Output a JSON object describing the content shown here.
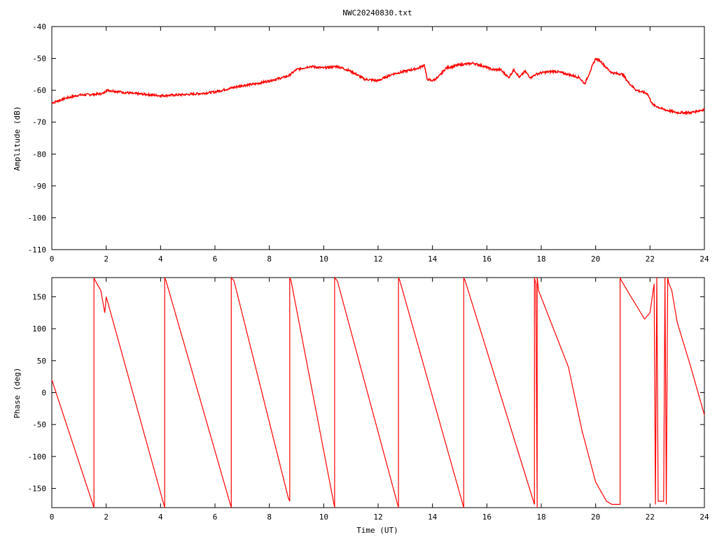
{
  "title": "NWC20240830.txt",
  "colors": {
    "series": "#ff0000",
    "axis": "#000000",
    "background": "#ffffff"
  },
  "chart_data": [
    {
      "type": "line",
      "title": "NWC20240830.txt",
      "xlabel": "",
      "ylabel": "Amplitude (dB)",
      "xlim": [
        0,
        24
      ],
      "ylim": [
        -110,
        -40
      ],
      "xticks": [
        "0",
        "2",
        "4",
        "6",
        "8",
        "10",
        "12",
        "14",
        "16",
        "18",
        "20",
        "22",
        "24"
      ],
      "yticks": [
        "-40",
        "-50",
        "-60",
        "-70",
        "-80",
        "-90",
        "-100",
        "-110"
      ],
      "grid": false,
      "series": [
        {
          "x": [
            0,
            0.5,
            1.0,
            1.5,
            1.9,
            2.0,
            2.1,
            2.5,
            3.0,
            3.5,
            4.0,
            4.5,
            5.0,
            5.5,
            6.0,
            6.5,
            7.0,
            7.5,
            8.0,
            8.5,
            8.7,
            9.0,
            9.5,
            10.0,
            10.5,
            11.0,
            11.5,
            12.0,
            12.5,
            13.0,
            13.5,
            13.7,
            13.8,
            14.0,
            14.2,
            14.5,
            15.0,
            15.5,
            15.9,
            16.2,
            16.5,
            16.8,
            17.0,
            17.2,
            17.4,
            17.6,
            17.8,
            18.0,
            18.5,
            19.0,
            19.4,
            19.6,
            19.8,
            20.0,
            20.2,
            20.4,
            20.6,
            21.0,
            21.2,
            21.5,
            21.9,
            22.1,
            22.5,
            23.0,
            23.5,
            24.0
          ],
          "y": [
            -64,
            -62.5,
            -61.5,
            -61.3,
            -61,
            -60,
            -60,
            -60.5,
            -61,
            -61.3,
            -61.7,
            -61.5,
            -61.3,
            -61,
            -60.5,
            -59.5,
            -58.5,
            -58,
            -57,
            -56,
            -55.5,
            -53.5,
            -52.5,
            -53,
            -52.5,
            -54,
            -56.5,
            -57,
            -55,
            -54,
            -53,
            -52,
            -56.5,
            -57,
            -56,
            -53,
            -52,
            -51.5,
            -52.5,
            -53.5,
            -53.5,
            -56,
            -53.5,
            -56,
            -54,
            -56,
            -55,
            -54.5,
            -54,
            -55,
            -56,
            -58,
            -54,
            -50,
            -51,
            -53,
            -54.5,
            -55,
            -57.5,
            -60,
            -61,
            -64.5,
            -66,
            -67,
            -67,
            -66
          ]
        }
      ]
    },
    {
      "type": "line",
      "title": "",
      "xlabel": "Time (UT)",
      "ylabel": "Phase (deg)",
      "xlim": [
        0,
        24
      ],
      "ylim": [
        -180,
        180
      ],
      "xticks": [
        "0",
        "2",
        "4",
        "6",
        "8",
        "10",
        "12",
        "14",
        "16",
        "18",
        "20",
        "22",
        "24"
      ],
      "yticks": [
        "150",
        "100",
        "50",
        "0",
        "-50",
        "-100",
        "-150"
      ],
      "grid": false,
      "series": [
        {
          "x": [
            0,
            1.55,
            1.55,
            1.6,
            1.8,
            1.95,
            2.0,
            4.15,
            4.15,
            4.2,
            6.6,
            6.6,
            6.7,
            8.7,
            8.75,
            8.75,
            8.8,
            10.4,
            10.4,
            10.5,
            12.75,
            12.75,
            12.8,
            15.15,
            15.15,
            15.2,
            17.75,
            17.75,
            17.8,
            17.85,
            17.85,
            17.9,
            19.0,
            19.5,
            20.0,
            20.4,
            20.6,
            20.9,
            20.9,
            20.95,
            21.3,
            21.8,
            22.0,
            22.15,
            22.2,
            22.25,
            22.3,
            22.5,
            22.55,
            22.6,
            22.65,
            22.7,
            22.8,
            23.0,
            23.5,
            24.0
          ],
          "y": [
            20,
            -180,
            180,
            175,
            160,
            125,
            150,
            -180,
            180,
            175,
            -180,
            180,
            175,
            -165,
            -170,
            180,
            175,
            -180,
            180,
            175,
            -180,
            180,
            175,
            -180,
            180,
            175,
            -175,
            180,
            170,
            -180,
            180,
            160,
            40,
            -60,
            -140,
            -170,
            -175,
            -175,
            180,
            175,
            150,
            115,
            125,
            170,
            -175,
            180,
            -170,
            -170,
            180,
            -175,
            180,
            170,
            160,
            110,
            40,
            -35
          ]
        }
      ]
    }
  ]
}
